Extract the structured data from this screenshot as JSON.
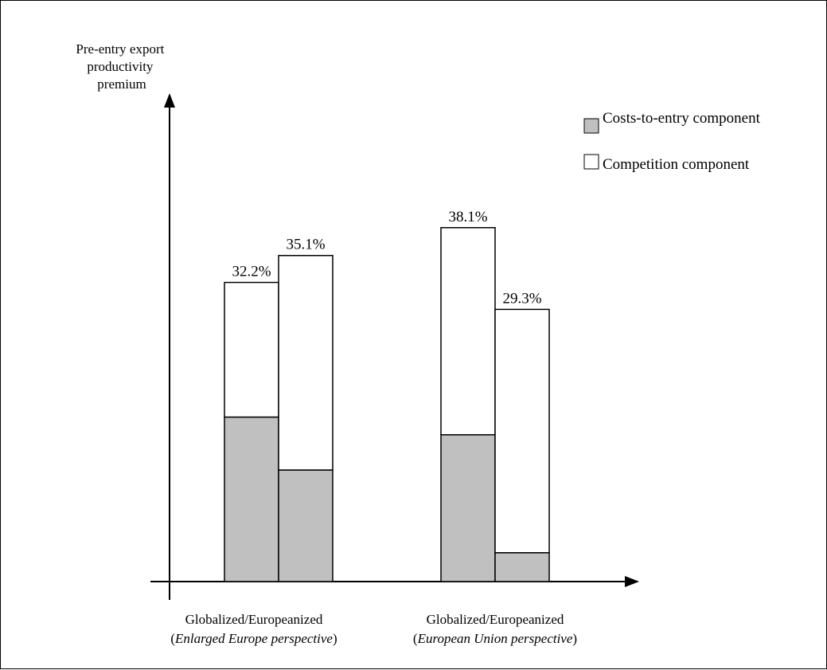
{
  "chart_data": {
    "type": "bar",
    "stacked": true,
    "ylabel": [
      "Pre-entry export",
      "productivity",
      "premium"
    ],
    "groups": [
      {
        "label_line1": "Globalized/Europeanized",
        "label_line2_open": "(",
        "label_line2_italic": "Enlarged Europe perspective",
        "label_line2_close": ")",
        "bars": [
          {
            "total": 32.2,
            "costs": 17.7,
            "label": "32.2%"
          },
          {
            "total": 35.1,
            "costs": 12.0,
            "label": "35.1%"
          }
        ]
      },
      {
        "label_line1": "Globalized/Europeanized",
        "label_line2_open": "(",
        "label_line2_italic": "European Union perspective",
        "label_line2_close": ")",
        "bars": [
          {
            "total": 38.1,
            "costs": 15.8,
            "label": "38.1%"
          },
          {
            "total": 29.3,
            "costs": 3.1,
            "label": "29.3%"
          }
        ]
      }
    ],
    "series": [
      {
        "name": "Costs-to-entry component",
        "color": "#c0c0c0"
      },
      {
        "name": "Competition component",
        "color": "#ffffff"
      }
    ],
    "legend_position": "top-right",
    "grid": false
  }
}
